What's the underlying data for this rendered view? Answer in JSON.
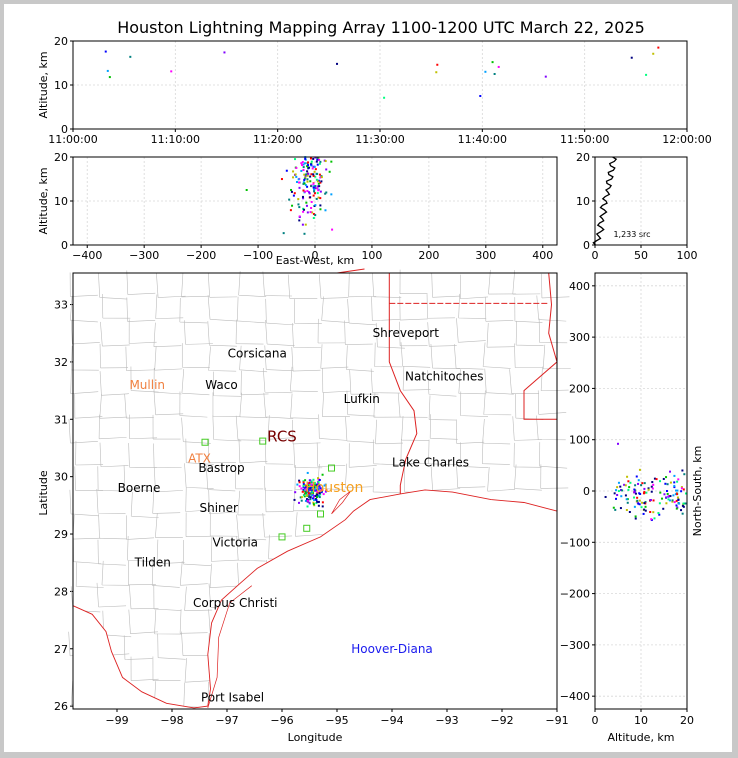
{
  "title": "Houston Lightning Mapping Array 1100-1200 UTC March 22, 2025",
  "colors": {
    "window_border": "#c8c8c8",
    "state_border": "#dd2222",
    "county_border": "#bbbbbb",
    "coast": "#dd2222",
    "city_label": "#000000",
    "station_orange": "#f08040",
    "station_green": "#44cc22",
    "offshore_label": "#1a1aee",
    "rcs_label": "#770000",
    "source_palette": [
      "#0000ff",
      "#00a0ff",
      "#00c000",
      "#008080",
      "#ff00ff",
      "#8000ff",
      "#000080",
      "#00ff80",
      "#c0c000",
      "#ff0000"
    ]
  },
  "chart_data": [
    {
      "id": "time_height",
      "type": "scatter",
      "xlabel": "",
      "ylabel": "Altitude, km",
      "x_ticks": [
        "11:00:00",
        "11:10:00",
        "11:20:00",
        "11:30:00",
        "11:40:00",
        "11:50:00",
        "12:00:00"
      ],
      "xlim_minutes": [
        0,
        60
      ],
      "ylim": [
        0,
        20
      ],
      "y_ticks": [
        0,
        10,
        20
      ],
      "grid": true,
      "points": [
        [
          3.2,
          17.6
        ],
        [
          3.4,
          13.2
        ],
        [
          3.6,
          11.8
        ],
        [
          5.6,
          16.4
        ],
        [
          9.6,
          13.1
        ],
        [
          14.8,
          17.4
        ],
        [
          25.8,
          14.8
        ],
        [
          30.4,
          7.1
        ],
        [
          35.5,
          12.9
        ],
        [
          35.6,
          14.6
        ],
        [
          39.8,
          7.5
        ],
        [
          40.3,
          13.0
        ],
        [
          41.0,
          15.2
        ],
        [
          41.2,
          12.5
        ],
        [
          41.6,
          14.1
        ],
        [
          46.2,
          11.9
        ],
        [
          54.6,
          16.2
        ],
        [
          56.0,
          12.3
        ],
        [
          56.7,
          17.1
        ],
        [
          57.2,
          18.5
        ]
      ],
      "palette_order": true
    },
    {
      "id": "ew_height",
      "type": "scatter",
      "xlabel": "East-West, km",
      "ylabel": "Altitude, km",
      "xlim": [
        -425,
        425
      ],
      "ylim": [
        0,
        20
      ],
      "x_ticks": [
        -400,
        -300,
        -200,
        -100,
        0,
        100,
        200,
        300,
        400
      ],
      "y_ticks": [
        0,
        10,
        20
      ],
      "grid": true,
      "cluster": {
        "count": 170,
        "seed": 11,
        "x_range": [
          -70,
          50
        ],
        "y_range": [
          2,
          20
        ],
        "outliers": [
          [
            -120,
            12.5
          ],
          [
            -55,
            2.7
          ],
          [
            30,
            3.5
          ]
        ]
      }
    },
    {
      "id": "altitude_histogram",
      "type": "line",
      "xlabel": "",
      "ylabel": "",
      "xlim": [
        0,
        100
      ],
      "ylim": [
        0,
        20
      ],
      "x_ticks": [
        0,
        50,
        100
      ],
      "y_ticks": [
        0,
        10,
        20
      ],
      "grid": true,
      "source_count_label": "1,233 src",
      "profile": [
        [
          0.5,
          0
        ],
        [
          2,
          1
        ],
        [
          4,
          2
        ],
        [
          6,
          3
        ],
        [
          7,
          4
        ],
        [
          5,
          5
        ],
        [
          8,
          6
        ],
        [
          9,
          7
        ],
        [
          10,
          8
        ],
        [
          8,
          9
        ],
        [
          12,
          10
        ],
        [
          11,
          11
        ],
        [
          14,
          12
        ],
        [
          16,
          13
        ],
        [
          13,
          14
        ],
        [
          18,
          15
        ],
        [
          15,
          16
        ],
        [
          20,
          17
        ],
        [
          17,
          18
        ],
        [
          21,
          19
        ],
        [
          19,
          20
        ]
      ]
    },
    {
      "id": "plan_view",
      "type": "scatter",
      "xlabel": "Longitude",
      "ylabel": "Latitude",
      "xlim": [
        -99.8,
        -91.0
      ],
      "ylim": [
        25.95,
        33.55
      ],
      "x_ticks": [
        -99,
        -98,
        -97,
        -96,
        -95,
        -94,
        -93,
        -92,
        -91
      ],
      "y_ticks": [
        26,
        27,
        28,
        29,
        30,
        31,
        32,
        33
      ],
      "cluster": {
        "count": 180,
        "seed": 23,
        "x_range": [
          -95.85,
          -95.05
        ],
        "y_range": [
          29.35,
          30.15
        ]
      },
      "place_labels": [
        {
          "text": "Shreveport",
          "lon": -93.75,
          "lat": 32.5,
          "color": "#000000"
        },
        {
          "text": "Corsicana",
          "lon": -96.45,
          "lat": 32.15,
          "color": "#000000"
        },
        {
          "text": "Natchitoches",
          "lon": -93.05,
          "lat": 31.75,
          "color": "#000000"
        },
        {
          "text": "Mullin",
          "lon": -98.45,
          "lat": 31.6,
          "color": "#f08040"
        },
        {
          "text": "Waco",
          "lon": -97.1,
          "lat": 31.6,
          "color": "#000000"
        },
        {
          "text": "Lufkin",
          "lon": -94.55,
          "lat": 31.35,
          "color": "#000000"
        },
        {
          "text": "RCS",
          "lon": -96.0,
          "lat": 30.68,
          "color": "#770000"
        },
        {
          "text": "ATX",
          "lon": -97.5,
          "lat": 30.32,
          "color": "#f08040"
        },
        {
          "text": "Bastrop",
          "lon": -97.1,
          "lat": 30.15,
          "color": "#000000"
        },
        {
          "text": "Lake Charles",
          "lon": -93.3,
          "lat": 30.25,
          "color": "#000000"
        },
        {
          "text": "Boerne",
          "lon": -98.6,
          "lat": 29.8,
          "color": "#000000"
        },
        {
          "text": "Houston",
          "lon": -95.05,
          "lat": 29.8,
          "color": "#f5a020"
        },
        {
          "text": "Shiner",
          "lon": -97.15,
          "lat": 29.45,
          "color": "#000000"
        },
        {
          "text": "Victoria",
          "lon": -96.85,
          "lat": 28.85,
          "color": "#000000"
        },
        {
          "text": "Tilden",
          "lon": -98.35,
          "lat": 28.5,
          "color": "#000000"
        },
        {
          "text": "Corpus Christi",
          "lon": -96.85,
          "lat": 27.8,
          "color": "#000000"
        },
        {
          "text": "Hoover-Diana",
          "lon": -94.0,
          "lat": 27.0,
          "color": "#1a1aee"
        },
        {
          "text": "Port Isabel",
          "lon": -96.9,
          "lat": 26.15,
          "color": "#000000"
        }
      ],
      "stations": [
        [
          -97.4,
          30.6
        ],
        [
          -96.35,
          30.62
        ],
        [
          -95.3,
          29.35
        ],
        [
          -95.55,
          29.1
        ],
        [
          -96.0,
          28.95
        ],
        [
          -95.1,
          30.15
        ]
      ]
    },
    {
      "id": "ns_height",
      "type": "scatter",
      "xlabel": "Altitude, km",
      "ylabel": "North-South, km",
      "xlim": [
        0,
        20
      ],
      "ylim": [
        -425,
        425
      ],
      "x_ticks": [
        0,
        10,
        20
      ],
      "y_ticks": [
        -400,
        -300,
        -200,
        -100,
        0,
        100,
        200,
        300,
        400
      ],
      "grid": true,
      "cluster": {
        "count": 150,
        "seed": 37,
        "x_range": [
          2,
          20
        ],
        "y_range": [
          -80,
          60
        ],
        "outliers": [
          [
            5,
            92
          ],
          [
            19,
            40
          ]
        ]
      }
    }
  ]
}
